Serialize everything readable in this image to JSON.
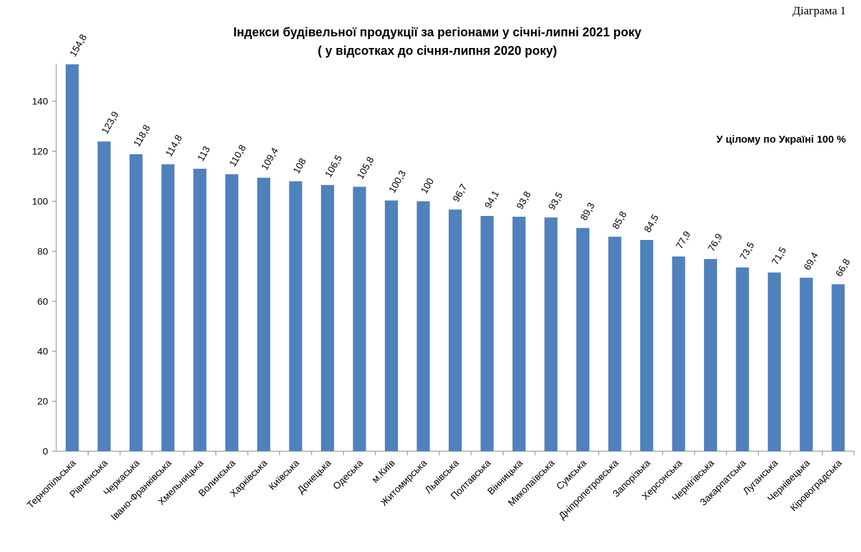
{
  "header": {
    "diagram_label": "Діаграма 1"
  },
  "chart_data": {
    "type": "bar",
    "title": "Індекси будівельної продукції за регіонами  у січні-липні 2021 року",
    "subtitle": "( у відсотках до січня-липня 2020 року)",
    "annotation": "У цілому по Україні  100 %",
    "xlabel": "",
    "ylabel": "",
    "ylim": [
      0,
      155
    ],
    "yticks": [
      0,
      20,
      40,
      60,
      80,
      100,
      120,
      140
    ],
    "grid": false,
    "bar_color": "#4F81BD",
    "categories": [
      "Тернопільська",
      "Рівненська",
      "Черкаська",
      "Івано-Франківська",
      "Хмельницька",
      "Волинська",
      "Харківська",
      "Київська",
      "Донецька",
      "Одеська",
      "м.Київ",
      "Житомирська",
      "Львівська",
      "Полтавська",
      "Вінницька",
      "Миколаївська",
      "Сумська",
      "Дніпропетровська",
      "Запорізька",
      "Херсонська",
      "Чернігівська",
      "Закарпатська",
      "Луганська",
      "Чернівецька",
      "Кіровоградська"
    ],
    "values": [
      154.8,
      123.9,
      118.8,
      114.8,
      113,
      110.8,
      109.4,
      108,
      106.5,
      105.8,
      100.3,
      100,
      96.7,
      94.1,
      93.8,
      93.5,
      89.3,
      85.8,
      84.5,
      77.9,
      76.9,
      73.5,
      71.5,
      69.4,
      66.8
    ],
    "value_labels": [
      "154,8",
      "123,9",
      "118,8",
      "114,8",
      "113",
      "110,8",
      "109,4",
      "108",
      "106,5",
      "105,8",
      "100,3",
      "100",
      "96,7",
      "94,1",
      "93,8",
      "93,5",
      "89,3",
      "85,8",
      "84,5",
      "77,9",
      "76,9",
      "73,5",
      "71,5",
      "69,4",
      "66,8"
    ]
  }
}
